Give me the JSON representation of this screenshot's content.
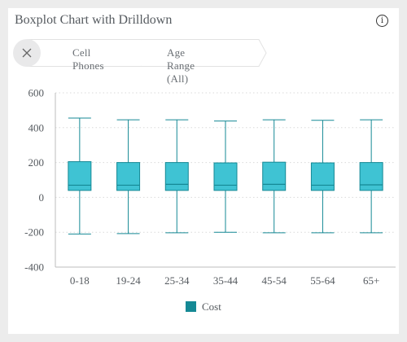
{
  "header": {
    "title": "Boxplot Chart with Drilldown",
    "info_icon": "info-icon"
  },
  "breadcrumb": {
    "close_icon": "close-icon",
    "items": [
      {
        "label": "Cell Phones"
      },
      {
        "label": "Age Range (All)"
      }
    ]
  },
  "colors": {
    "box_fill": "#3fc3d3",
    "box_stroke": "#158995",
    "axis": "#bdbdbd",
    "grid": "#d9d9d9",
    "tick_text": "#555a5f"
  },
  "chart_data": {
    "type": "boxplot",
    "title": "Boxplot Chart with Drilldown",
    "ylim": [
      -400,
      600
    ],
    "yticks": [
      600,
      400,
      200,
      0,
      -200,
      -400
    ],
    "categories": [
      "0-18",
      "19-24",
      "25-34",
      "35-44",
      "45-54",
      "55-64",
      "65+"
    ],
    "series": [
      {
        "name": "Cost",
        "values": [
          {
            "min": -210,
            "q1": 40,
            "median": 70,
            "q3": 205,
            "max": 455
          },
          {
            "min": -208,
            "q1": 40,
            "median": 70,
            "q3": 200,
            "max": 445
          },
          {
            "min": -203,
            "q1": 40,
            "median": 75,
            "q3": 200,
            "max": 445
          },
          {
            "min": -200,
            "q1": 40,
            "median": 70,
            "q3": 198,
            "max": 438
          },
          {
            "min": -203,
            "q1": 40,
            "median": 75,
            "q3": 202,
            "max": 445
          },
          {
            "min": -203,
            "q1": 40,
            "median": 70,
            "q3": 198,
            "max": 442
          },
          {
            "min": -203,
            "q1": 40,
            "median": 72,
            "q3": 200,
            "max": 445
          }
        ]
      }
    ],
    "legend": {
      "position": "bottom-center",
      "entries": [
        "Cost"
      ]
    },
    "grid": "horizontal-dotted"
  }
}
